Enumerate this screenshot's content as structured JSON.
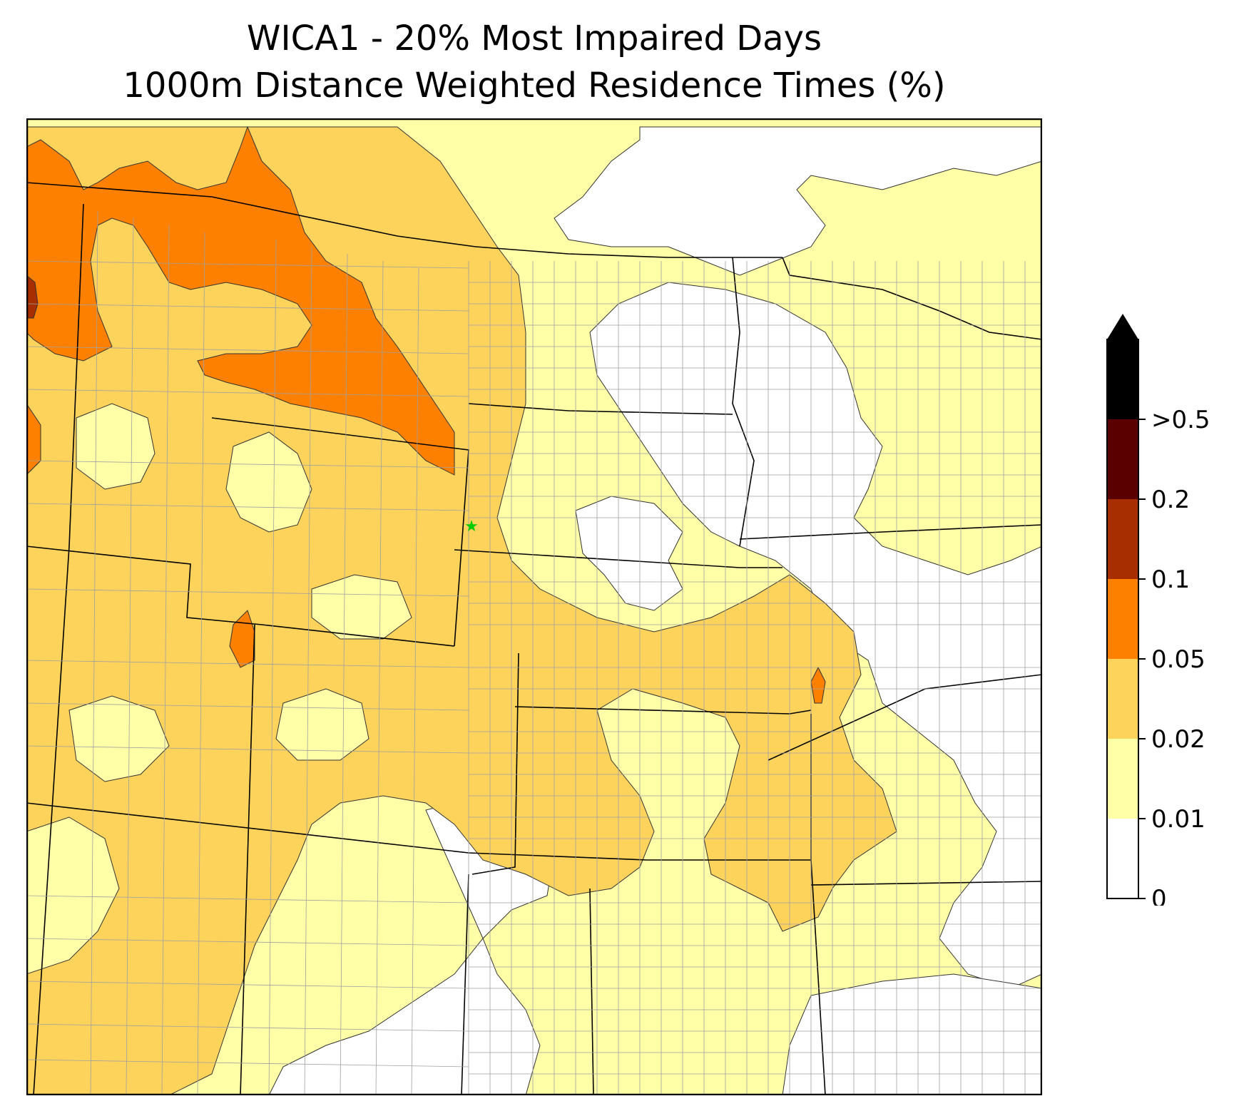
{
  "title": {
    "line1": "WICA1 - 20% Most Impaired Days",
    "line2": "1000m Distance Weighted Residence Times (%)"
  },
  "colorbar": {
    "levels": [
      {
        "label": "0",
        "color": "#ffffff"
      },
      {
        "label": "0.01",
        "color": "#ffffa8"
      },
      {
        "label": "0.02",
        "color": "#fdd35c"
      },
      {
        "label": "0.05",
        "color": "#fe8000"
      },
      {
        "label": "0.1",
        "color": "#a72e00"
      },
      {
        "label": "0.2",
        "color": "#5a0000"
      },
      {
        "label": ">0.5",
        "color": "#000000"
      }
    ],
    "extend": "max"
  },
  "map": {
    "site_marker": {
      "symbol": "star",
      "color": "#00cc00"
    },
    "state_line_color": "#000000",
    "county_line_color": "#a0a0a0"
  }
}
